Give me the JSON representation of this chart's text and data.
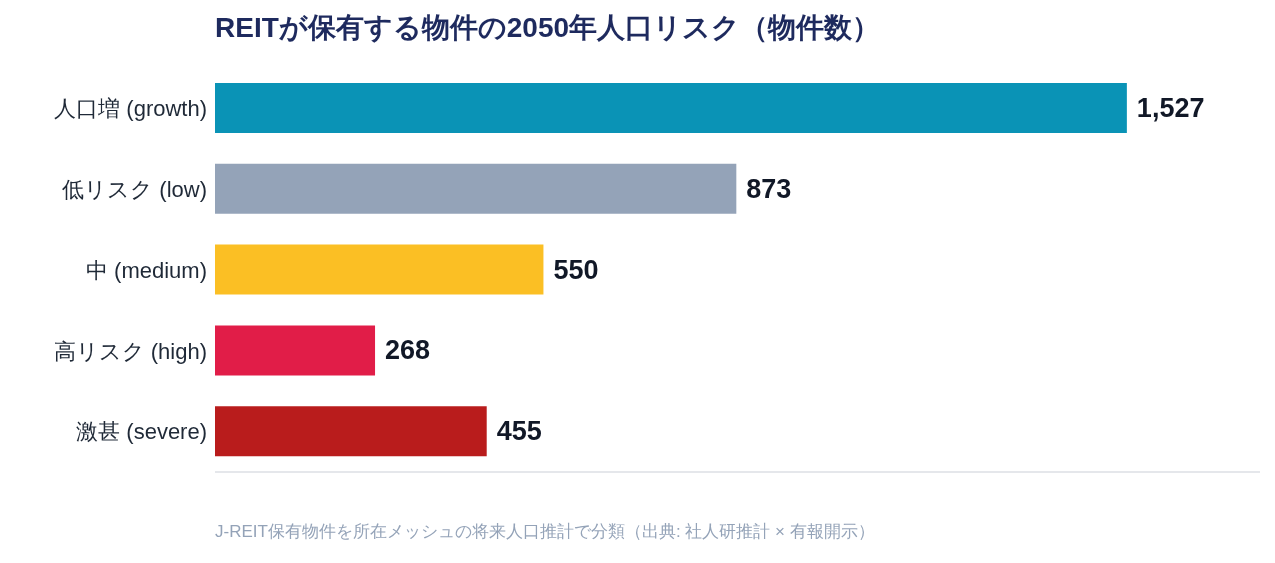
{
  "chart_data": {
    "type": "bar",
    "orientation": "horizontal",
    "title": "REITが保有する物件の2050年人口リスク（物件数）",
    "categories": [
      "人口増 (growth)",
      "低リスク (low)",
      "中 (medium)",
      "高リスク (high)",
      "激甚 (severe)"
    ],
    "values": [
      1527,
      873,
      550,
      268,
      455
    ],
    "value_labels": [
      "1,527",
      "873",
      "550",
      "268",
      "455"
    ],
    "colors": [
      "#0a93b6",
      "#94a3b8",
      "#fbbf24",
      "#e11d48",
      "#b91c1c"
    ],
    "annotations": [
      "J-REIT保有物件を所在メッシュの将来人口推計で分類（出典: 社人研推計 × 有報開示）"
    ]
  }
}
